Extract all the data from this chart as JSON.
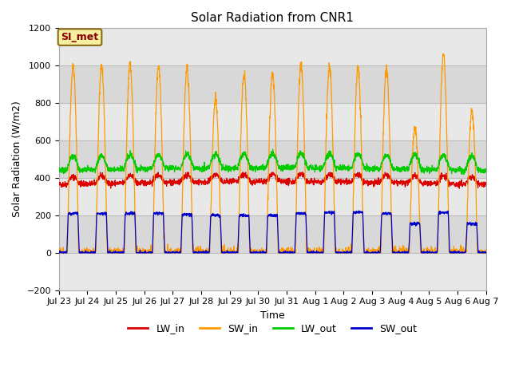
{
  "title": "Solar Radiation from CNR1",
  "xlabel": "Time",
  "ylabel": "Solar Radiation (W/m2)",
  "ylim": [
    -200,
    1200
  ],
  "annotation": "SI_met",
  "legend_labels": [
    "LW_in",
    "SW_in",
    "LW_out",
    "SW_out"
  ],
  "legend_colors": [
    "#dd0000",
    "#ff9900",
    "#00cc00",
    "#0000cc"
  ],
  "fig_facecolor": "#ffffff",
  "axes_facecolor": "#f0f0f0",
  "n_days": 15,
  "xtick_labels": [
    "Jul 23",
    "Jul 24",
    "Jul 25",
    "Jul 26",
    "Jul 27",
    "Jul 28",
    "Jul 29",
    "Jul 30",
    "Jul 31",
    "Aug 1",
    "Aug 2",
    "Aug 3",
    "Aug 4",
    "Aug 5",
    "Aug 6",
    "Aug 7"
  ],
  "sw_in_peaks": [
    1000,
    1000,
    1010,
    1000,
    990,
    820,
    960,
    960,
    1000,
    1000,
    990,
    980,
    670,
    1060,
    760
  ],
  "sw_out_peaks": [
    210,
    210,
    210,
    210,
    205,
    200,
    200,
    200,
    210,
    215,
    215,
    210,
    155,
    215,
    155
  ]
}
